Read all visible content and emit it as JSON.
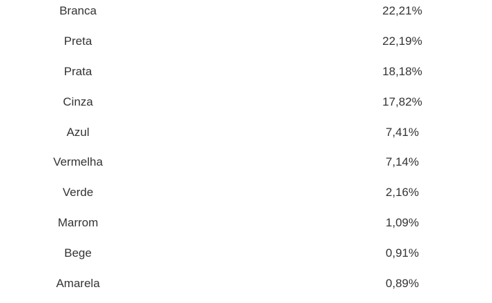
{
  "chart_data": {
    "type": "table",
    "title": "",
    "legend": "off",
    "grid": "off",
    "columns": [
      "color_name",
      "percentage"
    ],
    "categories": [
      "Branca",
      "Preta",
      "Prata",
      "Cinza",
      "Azul",
      "Vermelha",
      "Verde",
      "Marrom",
      "Bege",
      "Amarela"
    ],
    "values": [
      22.21,
      22.19,
      18.18,
      17.82,
      7.41,
      7.14,
      2.16,
      1.09,
      0.91,
      0.89
    ],
    "value_format": "0,00% (comma decimal separator)",
    "rows": [
      {
        "label": "Branca",
        "value": "22,21%"
      },
      {
        "label": "Preta",
        "value": "22,19%"
      },
      {
        "label": "Prata",
        "value": "18,18%"
      },
      {
        "label": "Cinza",
        "value": "17,82%"
      },
      {
        "label": "Azul",
        "value": "7,41%"
      },
      {
        "label": "Vermelha",
        "value": "7,14%"
      },
      {
        "label": "Verde",
        "value": "2,16%"
      },
      {
        "label": "Marrom",
        "value": "1,09%"
      },
      {
        "label": "Bege",
        "value": "0,91%"
      },
      {
        "label": "Amarela",
        "value": "0,89%"
      }
    ]
  },
  "style": {
    "text_color": "#333333",
    "background": "#ffffff"
  }
}
